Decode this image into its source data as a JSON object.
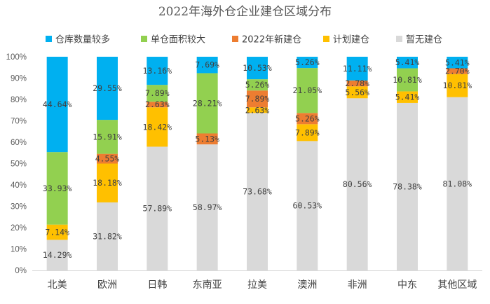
{
  "chart_data": {
    "type": "bar",
    "stacked": true,
    "title": "2022年海外仓企业建仓区域分布",
    "categories": [
      "北美",
      "欧洲",
      "日韩",
      "东南亚",
      "拉美",
      "澳洲",
      "非洲",
      "中东",
      "其他区域"
    ],
    "series": [
      {
        "name": "暂无建仓",
        "color": "#d9d9d9",
        "values": [
          14.29,
          31.82,
          57.89,
          58.97,
          73.68,
          60.53,
          80.56,
          78.38,
          81.08
        ],
        "labels": [
          "14.29%",
          "31.82%",
          "57.89%",
          "58.97%",
          "73.68%",
          "60.53%",
          "80.56%",
          "78.38%",
          "81.08%"
        ]
      },
      {
        "name": "计划建仓",
        "color": "#ffc000",
        "values": [
          7.14,
          18.18,
          18.42,
          0,
          2.63,
          7.89,
          5.56,
          5.41,
          10.81
        ],
        "labels": [
          "7.14%",
          "18.18%",
          "18.42%",
          "",
          "2.63%",
          "7.89%",
          "5.56%",
          "5.41%",
          "10.81%"
        ]
      },
      {
        "name": "2022年新建仓",
        "color": "#ed7d31",
        "values": [
          0,
          4.55,
          2.63,
          5.13,
          7.89,
          5.26,
          2.78,
          0,
          2.7
        ],
        "labels": [
          "",
          "4.55%",
          "2.63%",
          "5.13%",
          "7.89%",
          "5.26%",
          "2.78%",
          "",
          "2.70%"
        ]
      },
      {
        "name": "单仓面积较大",
        "color": "#92d050",
        "values": [
          33.93,
          15.91,
          7.89,
          28.21,
          5.26,
          21.05,
          0,
          10.81,
          0
        ],
        "labels": [
          "33.93%",
          "15.91%",
          "7.89%",
          "28.21%",
          "5.26%",
          "21.05%",
          "",
          "10.81%",
          ""
        ]
      },
      {
        "name": "仓库数量较多",
        "color": "#00b0f0",
        "values": [
          44.64,
          29.55,
          13.16,
          7.69,
          10.53,
          5.26,
          11.11,
          5.41,
          5.41
        ],
        "labels": [
          "44.64%",
          "29.55%",
          "13.16%",
          "7.69%",
          "10.53%",
          "5.26%",
          "11.11%",
          "5.41%",
          "5.41%"
        ]
      }
    ],
    "legend_order": [
      "仓库数量较多",
      "单仓面积较大",
      "2022年新建仓",
      "计划建仓",
      "暂无建仓"
    ],
    "ylim": [
      0,
      100
    ],
    "yticks": [
      "0%",
      "10%",
      "20%",
      "30%",
      "40%",
      "50%",
      "60%",
      "70%",
      "80%",
      "90%",
      "100%"
    ],
    "xlabel": "",
    "ylabel": "",
    "grid": false,
    "legend_position": "top"
  }
}
